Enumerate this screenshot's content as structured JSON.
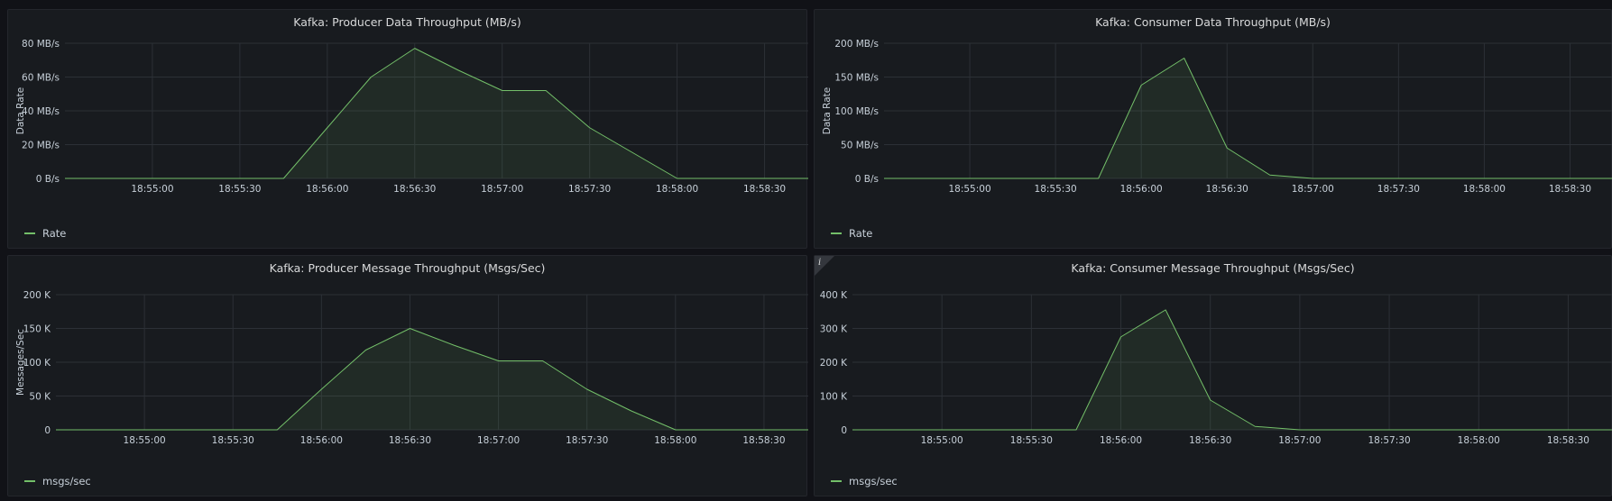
{
  "colors": {
    "series": "#73bf69",
    "grid": "#2c3036",
    "tick_text": "#c7d0d9"
  },
  "chart_data": [
    {
      "id": "producer-data",
      "type": "area",
      "title": "Kafka: Producer Data Throughput (MB/s)",
      "ylabel": "Data Rate",
      "xlabel": "",
      "x_ticks": [
        "18:55:00",
        "18:55:30",
        "18:56:00",
        "18:56:30",
        "18:57:00",
        "18:57:30",
        "18:58:00",
        "18:58:30"
      ],
      "y_ticks": [
        "0 B/s",
        "20 MB/s",
        "40 MB/s",
        "60 MB/s",
        "80 MB/s"
      ],
      "ylim": [
        0,
        80
      ],
      "x_seconds": [
        0,
        45,
        60,
        75,
        90,
        105,
        120,
        135,
        150,
        165,
        180,
        195,
        210,
        225,
        240,
        255
      ],
      "series": [
        {
          "name": "Rate",
          "values": [
            0,
            0,
            0,
            0,
            30,
            60,
            77,
            64,
            52,
            52,
            30,
            15,
            0,
            0,
            0,
            0
          ]
        }
      ],
      "legend": "bottom-left"
    },
    {
      "id": "consumer-data",
      "type": "area",
      "title": "Kafka: Consumer Data Throughput (MB/s)",
      "ylabel": "Data Rate",
      "xlabel": "",
      "x_ticks": [
        "18:55:00",
        "18:55:30",
        "18:56:00",
        "18:56:30",
        "18:57:00",
        "18:57:30",
        "18:58:00",
        "18:58:30"
      ],
      "y_ticks": [
        "0 B/s",
        "50 MB/s",
        "100 MB/s",
        "150 MB/s",
        "200 MB/s"
      ],
      "ylim": [
        0,
        200
      ],
      "x_seconds": [
        0,
        45,
        60,
        75,
        90,
        105,
        120,
        135,
        150,
        165,
        180,
        195,
        210,
        225,
        240,
        255
      ],
      "series": [
        {
          "name": "Rate",
          "values": [
            0,
            0,
            0,
            0,
            138,
            178,
            45,
            5,
            0,
            0,
            0,
            0,
            0,
            0,
            0,
            0
          ]
        }
      ],
      "legend": "bottom-left"
    },
    {
      "id": "producer-msgs",
      "type": "area",
      "title": "Kafka: Producer Message Throughput (Msgs/Sec)",
      "ylabel": "Messages/Sec",
      "xlabel": "",
      "x_ticks": [
        "18:55:00",
        "18:55:30",
        "18:56:00",
        "18:56:30",
        "18:57:00",
        "18:57:30",
        "18:58:00",
        "18:58:30"
      ],
      "y_ticks": [
        "0",
        "50 K",
        "100 K",
        "150 K",
        "200 K"
      ],
      "ylim": [
        0,
        200
      ],
      "x_seconds": [
        0,
        45,
        60,
        75,
        90,
        105,
        120,
        135,
        150,
        165,
        180,
        195,
        210,
        225,
        240,
        255
      ],
      "series": [
        {
          "name": "msgs/sec",
          "values": [
            0,
            0,
            0,
            0,
            60,
            118,
            150,
            125,
            102,
            102,
            60,
            28,
            0,
            0,
            0,
            0
          ]
        }
      ],
      "legend": "bottom-left"
    },
    {
      "id": "consumer-msgs",
      "type": "area",
      "title": "Kafka: Consumer Message Throughput (Msgs/Sec)",
      "ylabel": "",
      "xlabel": "",
      "x_ticks": [
        "18:55:00",
        "18:55:30",
        "18:56:00",
        "18:56:30",
        "18:57:00",
        "18:57:30",
        "18:58:00",
        "18:58:30"
      ],
      "y_ticks": [
        "0",
        "100 K",
        "200 K",
        "300 K",
        "400 K"
      ],
      "ylim": [
        0,
        400
      ],
      "x_seconds": [
        0,
        45,
        60,
        75,
        90,
        105,
        120,
        135,
        150,
        165,
        180,
        195,
        210,
        225,
        240,
        255
      ],
      "series": [
        {
          "name": "msgs/sec",
          "values": [
            0,
            0,
            0,
            0,
            275,
            355,
            88,
            10,
            0,
            0,
            0,
            0,
            0,
            0,
            0,
            0
          ]
        }
      ],
      "legend": "bottom-left",
      "info_icon": "info-icon"
    }
  ]
}
